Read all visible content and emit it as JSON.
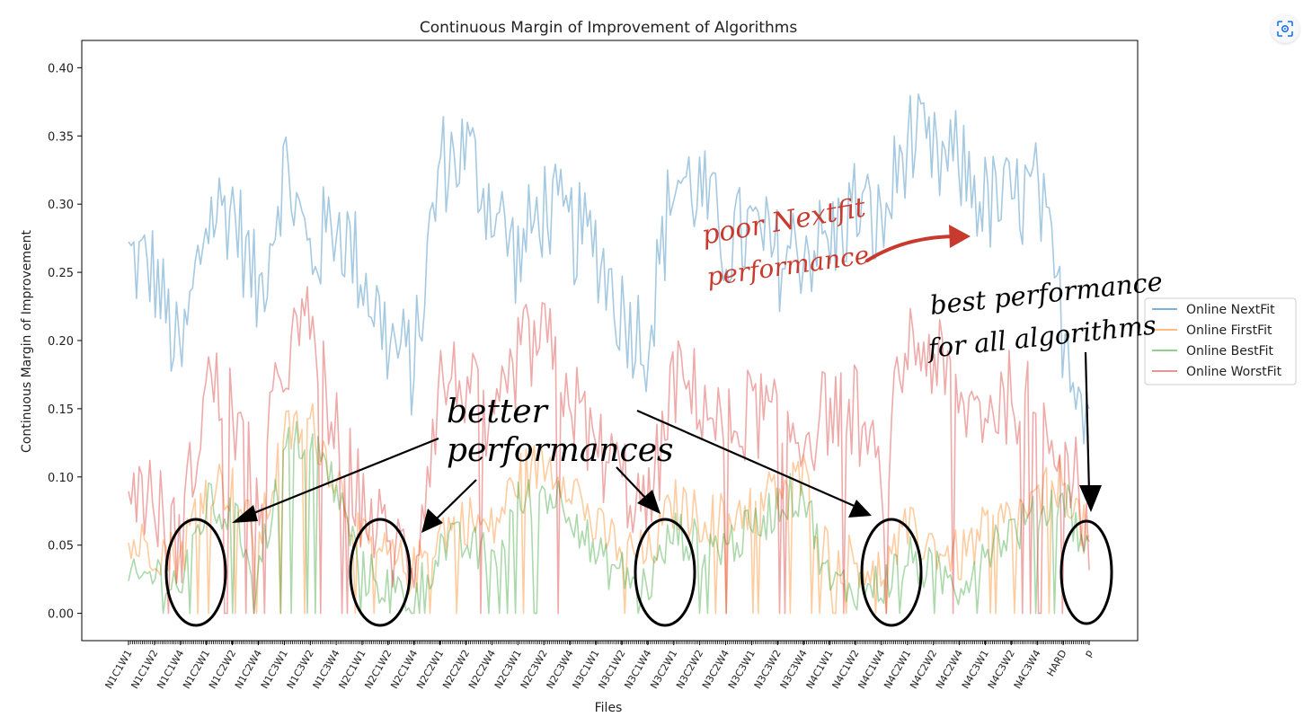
{
  "chart_data": {
    "type": "line",
    "title": "Continuous Margin of Improvement of Algorithms",
    "xlabel": "Files",
    "ylabel": "Continuous Margin of Improvement",
    "ylim": [
      -0.02,
      0.42
    ],
    "yticks": [
      0.0,
      0.05,
      0.1,
      0.15,
      0.2,
      0.25,
      0.3,
      0.35,
      0.4
    ],
    "ytick_labels": [
      "0.00",
      "0.05",
      "0.10",
      "0.15",
      "0.20",
      "0.25",
      "0.30",
      "0.35",
      "0.40"
    ],
    "xtick_labels": [
      "N1C1W1",
      "N1C1W2",
      "N1C1W4",
      "N1C2W1",
      "N1C2W2",
      "N1C2W4",
      "N1C3W1",
      "N1C3W2",
      "N1C3W4",
      "N2C1W1",
      "N2C1W2",
      "N2C1W4",
      "N2C2W1",
      "N2C2W2",
      "N2C2W4",
      "N2C3W1",
      "N2C3W2",
      "N2C3W4",
      "N3C1W1",
      "N3C1W2",
      "N3C1W4",
      "N3C2W1",
      "N3C2W2",
      "N3C2W4",
      "N3C3W1",
      "N3C3W2",
      "N3C3W4",
      "N4C1W1",
      "N4C1W2",
      "N4C1W4",
      "N4C2W1",
      "N4C2W2",
      "N4C2W4",
      "N4C3W1",
      "N4C3W2",
      "N4C3W4",
      "HARD",
      "p"
    ],
    "grid": false,
    "legend_position": "right",
    "series": [
      {
        "name": "Online NextFit",
        "color": "#1f77b4",
        "values": [
          0.26,
          0.25,
          0.18,
          0.29,
          0.3,
          0.23,
          0.33,
          0.26,
          0.29,
          0.25,
          0.2,
          0.18,
          0.33,
          0.34,
          0.3,
          0.26,
          0.3,
          0.28,
          0.27,
          0.22,
          0.2,
          0.32,
          0.31,
          0.27,
          0.28,
          0.26,
          0.27,
          0.27,
          0.3,
          0.28,
          0.35,
          0.33,
          0.33,
          0.3,
          0.3,
          0.31,
          0.21,
          0.15
        ]
      },
      {
        "name": "Online FirstFit",
        "color": "#ff7f0e",
        "values": [
          0.05,
          0.05,
          0.04,
          0.1,
          0.09,
          0.05,
          0.13,
          0.14,
          0.1,
          0.05,
          0.04,
          0.03,
          0.06,
          0.07,
          0.06,
          0.1,
          0.11,
          0.1,
          0.06,
          0.05,
          0.04,
          0.08,
          0.07,
          0.07,
          0.08,
          0.09,
          0.1,
          0.04,
          0.04,
          0.03,
          0.06,
          0.05,
          0.04,
          0.06,
          0.07,
          0.08,
          0.1,
          0.05
        ]
      },
      {
        "name": "Online BestFit",
        "color": "#2ca02c",
        "values": [
          0.02,
          0.03,
          0.02,
          0.08,
          0.07,
          0.03,
          0.12,
          0.13,
          0.09,
          0.03,
          0.02,
          0.01,
          0.05,
          0.05,
          0.04,
          0.08,
          0.09,
          0.08,
          0.04,
          0.03,
          0.02,
          0.06,
          0.05,
          0.05,
          0.06,
          0.08,
          0.09,
          0.02,
          0.02,
          0.02,
          0.04,
          0.03,
          0.02,
          0.05,
          0.06,
          0.07,
          0.09,
          0.04
        ]
      },
      {
        "name": "Online WorstFit",
        "color": "#d62728",
        "values": [
          0.1,
          0.08,
          0.05,
          0.17,
          0.15,
          0.08,
          0.19,
          0.21,
          0.13,
          0.08,
          0.05,
          0.04,
          0.17,
          0.17,
          0.12,
          0.19,
          0.2,
          0.16,
          0.12,
          0.1,
          0.07,
          0.17,
          0.16,
          0.13,
          0.15,
          0.14,
          0.13,
          0.15,
          0.15,
          0.09,
          0.2,
          0.19,
          0.15,
          0.15,
          0.16,
          0.15,
          0.13,
          0.06
        ]
      }
    ]
  },
  "annotations": {
    "poor_nextfit_line1": "poor Nextfit",
    "poor_nextfit_line2": "performance",
    "better_line1": "better",
    "better_line2": "performances",
    "best_line1": "best performance",
    "best_line2": "for all algorithms"
  },
  "colors": {
    "annotation_red": "#c93a2e",
    "ink": "#000000"
  },
  "icons": {
    "top_right": "lens-icon"
  }
}
